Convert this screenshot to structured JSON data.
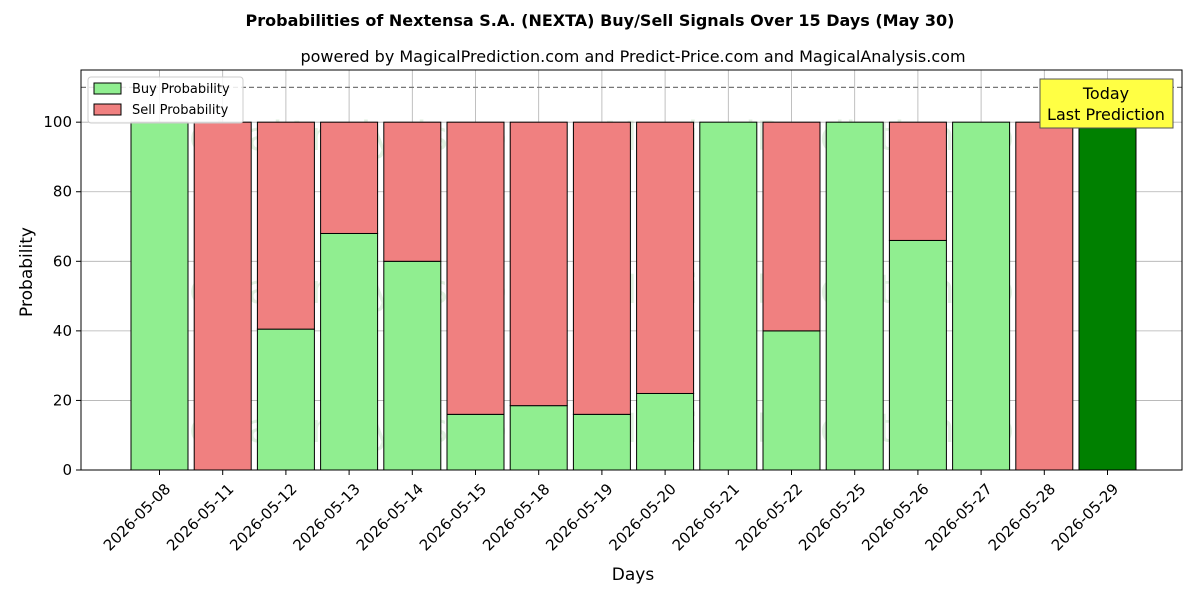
{
  "chart_data": {
    "type": "bar",
    "stacked": true,
    "title": "Probabilities of Nextensa S.A. (NEXTA) Buy/Sell Signals Over 15 Days (May 30)",
    "subtitle": "powered by MagicalPrediction.com and Predict-Price.com and MagicalAnalysis.com",
    "xlabel": "Days",
    "ylabel": "Probability",
    "ylim": [
      0,
      115
    ],
    "yticks": [
      0,
      20,
      40,
      60,
      80,
      100
    ],
    "reference_line": 110,
    "grid": true,
    "legend_position": "top-left",
    "categories": [
      "2026-05-08",
      "2026-05-11",
      "2026-05-12",
      "2026-05-13",
      "2026-05-14",
      "2026-05-15",
      "2026-05-18",
      "2026-05-19",
      "2026-05-20",
      "2026-05-21",
      "2026-05-22",
      "2026-05-25",
      "2026-05-26",
      "2026-05-27",
      "2026-05-28",
      "2026-05-29"
    ],
    "series": [
      {
        "name": "Buy Probability",
        "color": "#90ee90",
        "values": [
          100,
          0,
          40.5,
          68,
          60,
          16,
          18.5,
          16,
          22,
          100,
          40,
          100,
          66,
          100,
          0,
          100
        ]
      },
      {
        "name": "Sell Probability",
        "color": "#f08080",
        "values": [
          0,
          100,
          59.5,
          32,
          40,
          84,
          81.5,
          84,
          78,
          0,
          60,
          0,
          34,
          0,
          100,
          0
        ]
      }
    ],
    "highlight": {
      "index": 15,
      "color": "#008000",
      "label_lines": [
        "Today",
        "Last Prediction"
      ],
      "box_color": "#ffff44"
    },
    "watermarks": [
      "MagicalAnalysis.com",
      "MagicalPrediction.com"
    ]
  }
}
